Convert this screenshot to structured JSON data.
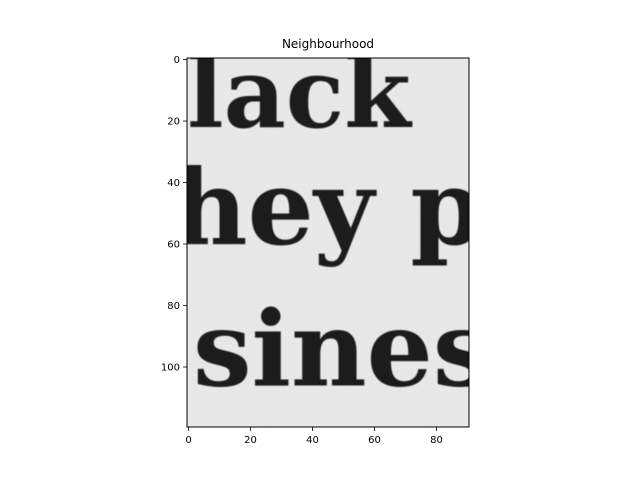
{
  "chart_data": {
    "type": "image",
    "title": "Neighbourhood",
    "xlabel": "",
    "ylabel": "",
    "xlim": [
      -0.5,
      90.5
    ],
    "ylim": [
      119.5,
      -0.5
    ],
    "x_ticks": [
      0,
      20,
      40,
      60,
      80
    ],
    "y_ticks": [
      0,
      20,
      40,
      60,
      80,
      100
    ],
    "grid": false,
    "colormap": "gray",
    "image_text_lines": [
      {
        "text": "black",
        "baseline_y": 22
      },
      {
        "text": "hey p",
        "baseline_y": 60
      },
      {
        "text": "siness",
        "baseline_y": 106
      }
    ]
  }
}
